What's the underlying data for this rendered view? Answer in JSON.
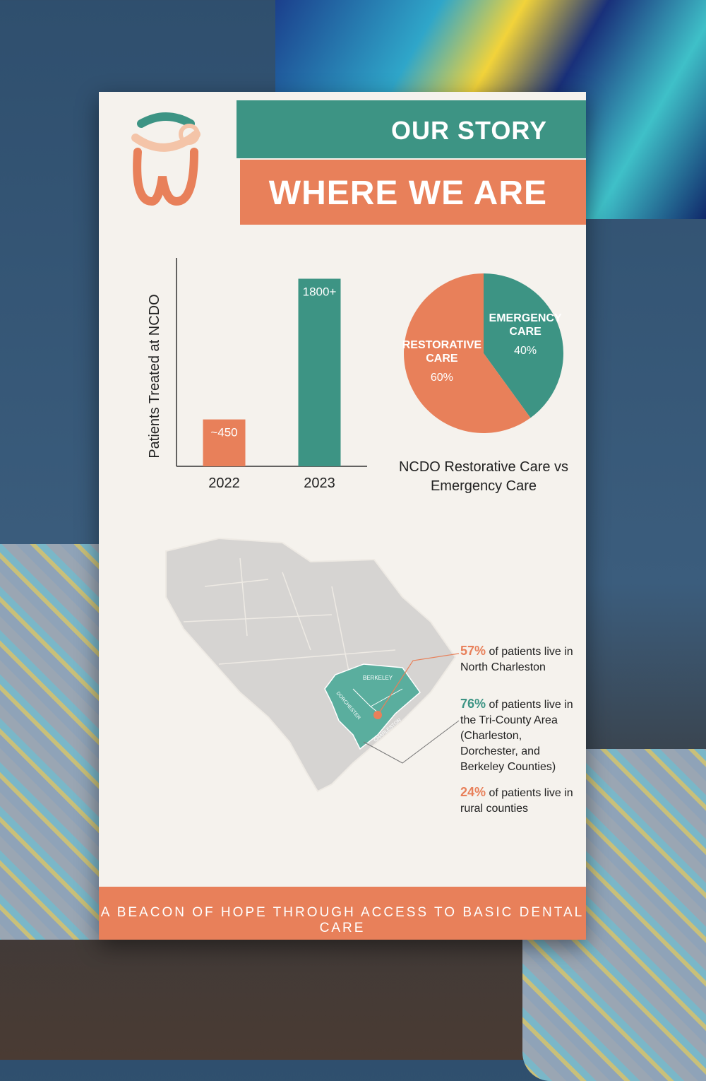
{
  "header": {
    "title": "OUR STORY",
    "subtitle": "WHERE WE ARE"
  },
  "chart_data": [
    {
      "type": "bar",
      "y_label": "Patients Treated at NCDO",
      "categories": [
        "2022",
        "2023"
      ],
      "values": [
        450,
        1800
      ],
      "value_labels": [
        "~450",
        "1800+"
      ],
      "colors": [
        "#e8805a",
        "#3d9484"
      ],
      "ylim": [
        0,
        2000
      ]
    },
    {
      "type": "pie",
      "title": "NCDO Restorative Care vs Emergency Care",
      "categories": [
        "EMERGENCY CARE",
        "RESTORATIVE CARE"
      ],
      "values": [
        40,
        60
      ],
      "value_labels": [
        "40%",
        "60%"
      ],
      "colors": [
        "#3d9484",
        "#e8805a"
      ]
    }
  ],
  "map": {
    "counties": [
      "BERKELEY",
      "DORCHESTER",
      "CHARLESTON"
    ],
    "stats": [
      {
        "figure": "57%",
        "text": "of patients live in North Charleston"
      },
      {
        "figure": "76%",
        "text": "of patients live in the Tri-County Area (Charleston, Dorchester, and Berkeley Counties)"
      },
      {
        "figure": "24%",
        "text": "of patients live in rural counties"
      }
    ]
  },
  "footer": {
    "tagline": "A BEACON OF HOPE THROUGH ACCESS TO BASIC DENTAL CARE"
  }
}
